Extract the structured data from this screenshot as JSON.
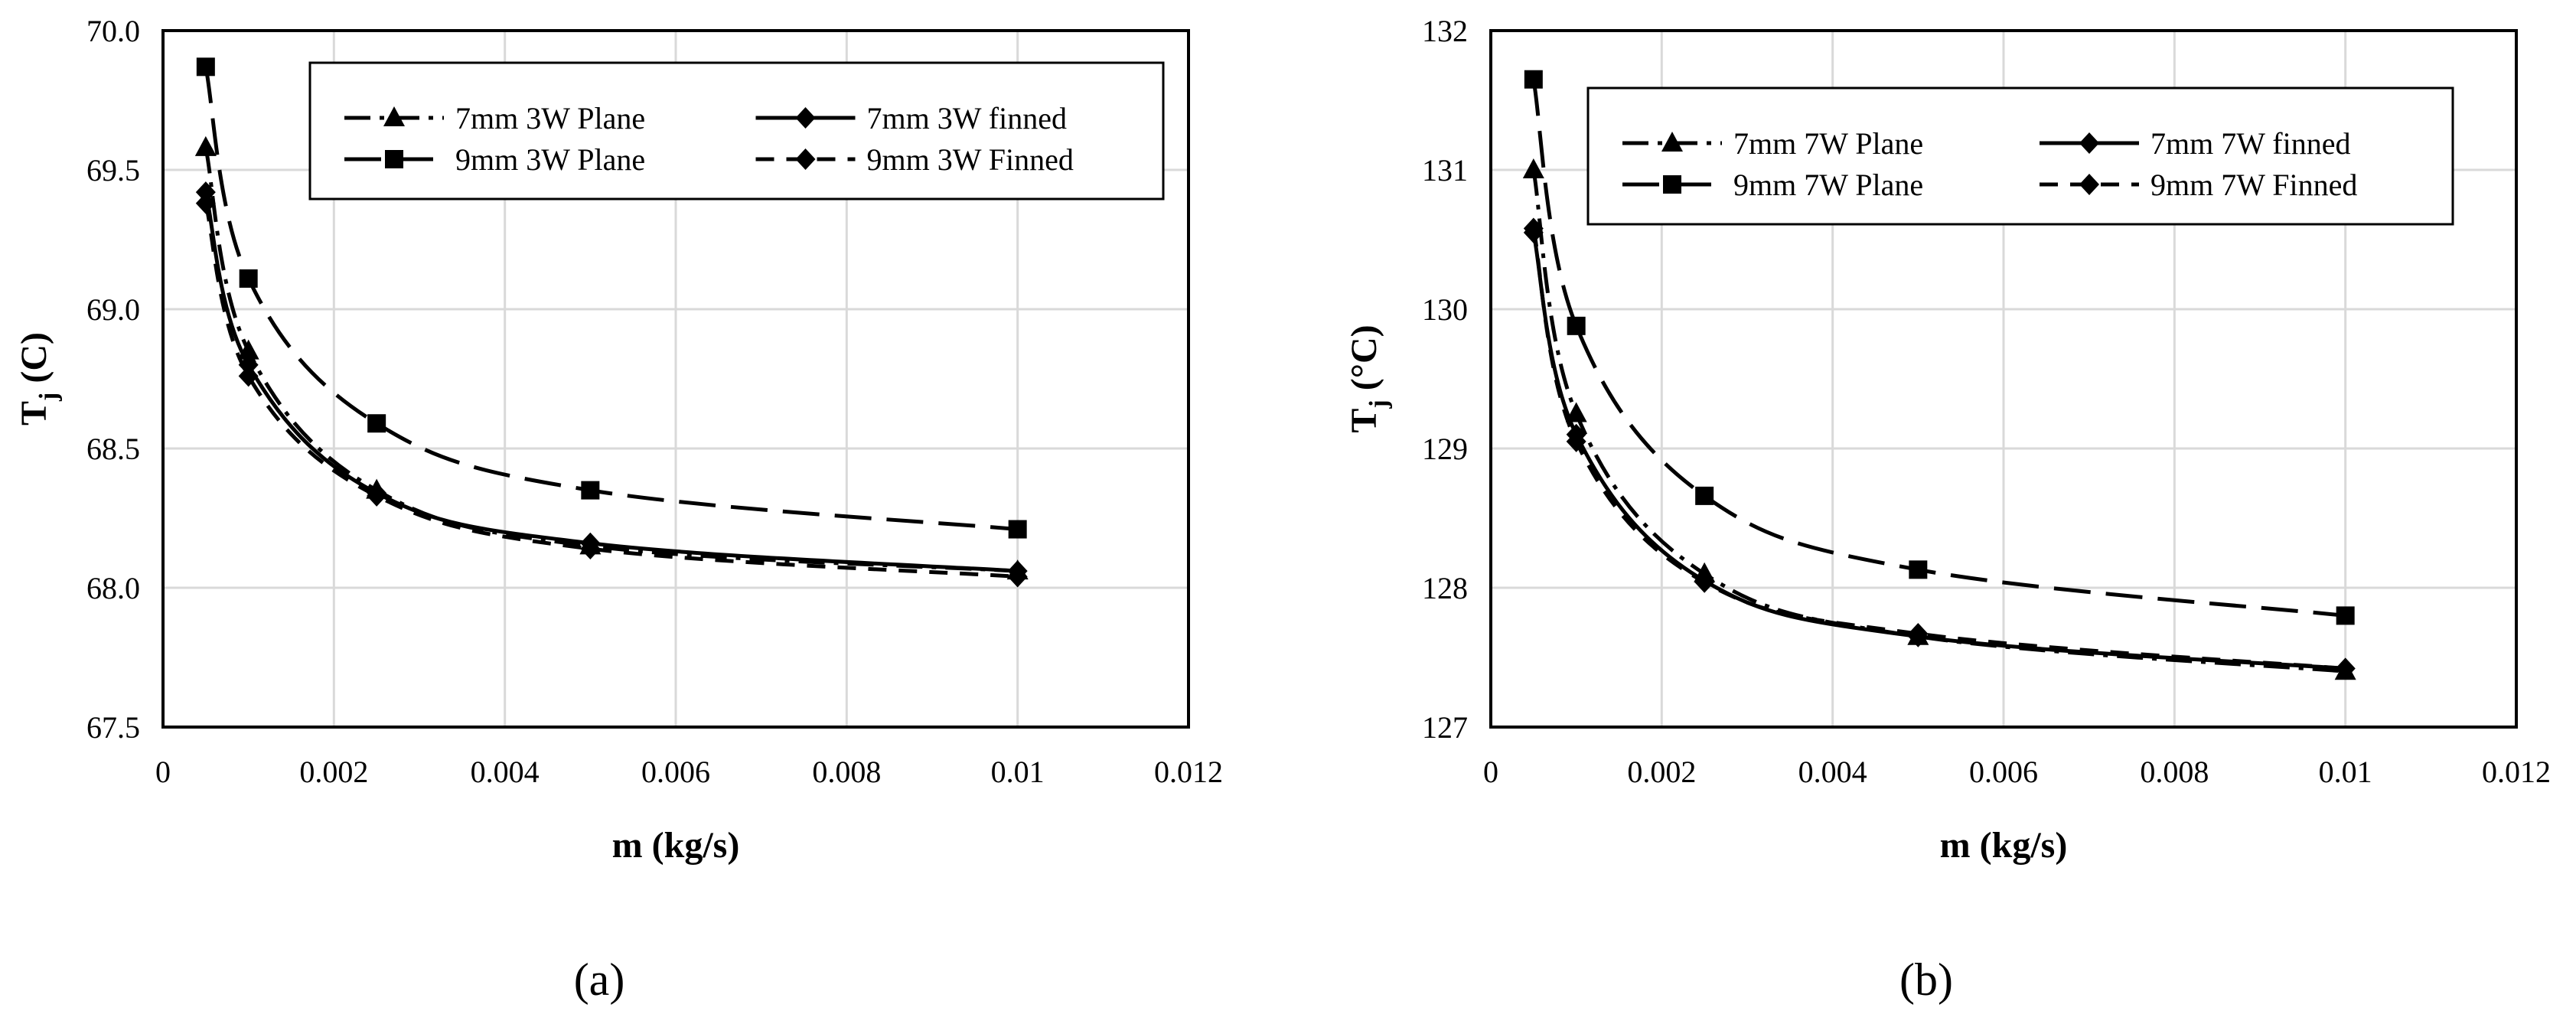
{
  "figure": {
    "panel_labels": [
      "(a)",
      "(b)"
    ]
  },
  "chart_data": [
    {
      "type": "line",
      "panel": "a",
      "title": "",
      "xlabel": "m (kg/s)",
      "ylabel_main": "T",
      "ylabel_sub": "j",
      "ylabel_rest": " (C)",
      "xlim": [
        0,
        0.012
      ],
      "ylim": [
        67.5,
        70.0
      ],
      "xticks": [
        "0",
        "0.002",
        "0.004",
        "0.006",
        "0.008",
        "0.01",
        "0.012"
      ],
      "yticks": [
        "67.5",
        "68.0",
        "68.5",
        "69.0",
        "69.5",
        "70.0"
      ],
      "grid": true,
      "legend_position": "top-right",
      "x": [
        0.0005,
        0.001,
        0.0025,
        0.005,
        0.01
      ],
      "series": [
        {
          "name": "7mm 3W Plane",
          "values": [
            69.58,
            68.85,
            68.35,
            68.15,
            68.06
          ],
          "marker": "triangle",
          "dash": "dash-dot"
        },
        {
          "name": "7mm 3W finned",
          "values": [
            69.42,
            68.8,
            68.34,
            68.16,
            68.06
          ],
          "marker": "diamond",
          "dash": "solid"
        },
        {
          "name": "9mm 3W Plane",
          "values": [
            69.87,
            69.11,
            68.59,
            68.35,
            68.21
          ],
          "marker": "square",
          "dash": "long-dash"
        },
        {
          "name": "9mm 3W Finned",
          "values": [
            69.38,
            68.76,
            68.33,
            68.14,
            68.04
          ],
          "marker": "diamond",
          "dash": "dash"
        }
      ]
    },
    {
      "type": "line",
      "panel": "b",
      "title": "",
      "xlabel": "m (kg/s)",
      "ylabel_main": "T",
      "ylabel_sub": "j",
      "ylabel_rest": " (°C)",
      "xlim": [
        0,
        0.012
      ],
      "ylim": [
        127,
        132
      ],
      "xticks": [
        "0",
        "0.002",
        "0.004",
        "0.006",
        "0.008",
        "0.01",
        "0.012"
      ],
      "yticks": [
        "127",
        "128",
        "129",
        "130",
        "131",
        "132"
      ],
      "grid": true,
      "legend_position": "top-right",
      "x": [
        0.0005,
        0.001,
        0.0025,
        0.005,
        0.01
      ],
      "series": [
        {
          "name": "7mm 7W Plane",
          "values": [
            131.0,
            129.25,
            128.1,
            127.65,
            127.4
          ],
          "marker": "triangle",
          "dash": "dash-dot"
        },
        {
          "name": "7mm 7W finned",
          "values": [
            130.55,
            129.1,
            128.05,
            127.65,
            127.42
          ],
          "marker": "diamond",
          "dash": "solid"
        },
        {
          "name": "9mm 7W Plane",
          "values": [
            131.65,
            129.88,
            128.66,
            128.13,
            127.8
          ],
          "marker": "square",
          "dash": "long-dash"
        },
        {
          "name": "9mm 7W Finned",
          "values": [
            130.58,
            129.05,
            128.04,
            127.67,
            127.42
          ],
          "marker": "diamond",
          "dash": "dash"
        }
      ]
    }
  ]
}
